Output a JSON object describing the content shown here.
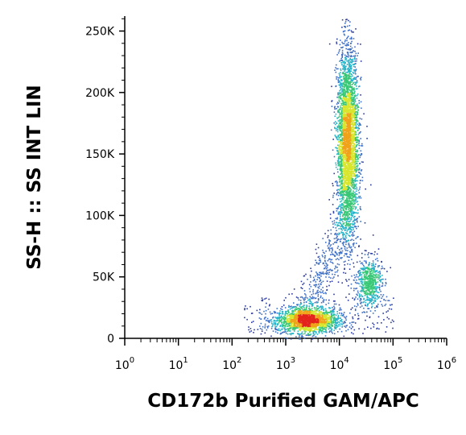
{
  "chart_data": {
    "type": "scatter",
    "subtype": "flow-cytometry-density-dot-plot",
    "xlabel": "CD172b Purified GAM/APC",
    "ylabel": "SS-H :: SS INT LIN",
    "x_scale": "log",
    "xlim": [
      1,
      1000000
    ],
    "ylim": [
      0,
      262144
    ],
    "x_tick_labels": [
      {
        "value": 1,
        "base": "10",
        "exp": "0"
      },
      {
        "value": 10,
        "base": "10",
        "exp": "1"
      },
      {
        "value": 100,
        "base": "10",
        "exp": "2"
      },
      {
        "value": 1000,
        "base": "10",
        "exp": "3"
      },
      {
        "value": 10000,
        "base": "10",
        "exp": "4"
      },
      {
        "value": 100000,
        "base": "10",
        "exp": "5"
      },
      {
        "value": 1000000,
        "base": "10",
        "exp": "6"
      }
    ],
    "y_tick_labels": [
      {
        "value": 0,
        "label": "0"
      },
      {
        "value": 50000,
        "label": "50K"
      },
      {
        "value": 100000,
        "label": "100K"
      },
      {
        "value": 150000,
        "label": "150K"
      },
      {
        "value": 200000,
        "label": "200K"
      },
      {
        "value": 250000,
        "label": "250K"
      }
    ],
    "grid": false,
    "color_scale": "density (blue-cyan-green-yellow-red)",
    "populations": [
      {
        "x_center": 2500,
        "y_center": 15000,
        "x_spread_decades": 0.3,
        "y_spread": 5000,
        "count": 1800
      },
      {
        "x_center": 14000,
        "y_center": 160000,
        "x_spread_decades": 0.1,
        "y_spread": 38000,
        "count": 3400
      },
      {
        "x_center": 35000,
        "y_center": 46000,
        "x_spread_decades": 0.12,
        "y_spread": 10000,
        "count": 600
      }
    ],
    "colors": [
      "#2b3a9c",
      "#3f6fc4",
      "#27b3c8",
      "#39c776",
      "#d8e62e",
      "#f0a21a",
      "#e4231d"
    ]
  }
}
